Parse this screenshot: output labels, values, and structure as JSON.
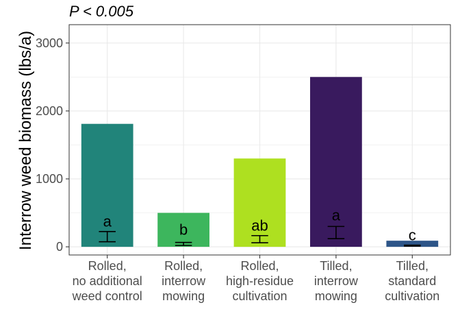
{
  "chart_data": {
    "type": "bar",
    "subtitle": "P < 0.005",
    "ylabel": "Interrow weed biomass (lbs/a)",
    "xlabel": "",
    "ylim": [
      -120,
      3270
    ],
    "yticks": [
      0,
      1000,
      2000,
      3000
    ],
    "grid": true,
    "legend": "none",
    "categories": [
      [
        "Rolled,",
        "no additional",
        "weed control"
      ],
      [
        "Rolled,",
        "interrow",
        "mowing"
      ],
      [
        "Rolled,",
        "high-residue",
        "cultivation"
      ],
      [
        "Tilled,",
        "interrow",
        "mowing"
      ],
      [
        "Tilled,",
        "standard",
        "cultivation"
      ]
    ],
    "values": [
      1810,
      500,
      1300,
      2500,
      90
    ],
    "error_low": [
      75,
      20,
      60,
      120,
      10
    ],
    "error_high": [
      225,
      65,
      165,
      300,
      25
    ],
    "letters": [
      "a",
      "b",
      "ab",
      "a",
      "c"
    ],
    "letter_y": [
      380,
      260,
      320,
      470,
      180
    ],
    "colors": [
      "#21847a",
      "#3db65d",
      "#aee020",
      "#391a5e",
      "#2d5588"
    ],
    "panel_background": "#ffffff",
    "grid_color": "#ebebeb",
    "panel_border": "#333333"
  }
}
